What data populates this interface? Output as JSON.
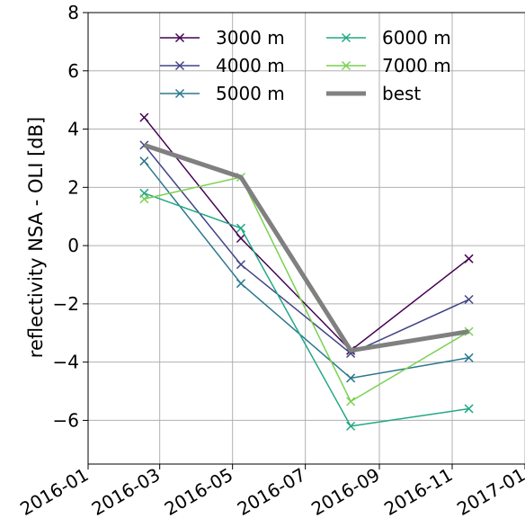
{
  "chart_data": {
    "type": "line",
    "title": "",
    "xlabel": "",
    "ylabel": "reflectivity NSA - OLI [dB]",
    "xlim": [
      "2016-01-01",
      "2017-01-01"
    ],
    "ylim": [
      -7.5,
      8
    ],
    "grid": true,
    "legend_placement": "top-center",
    "x_ticks": [
      "2016-01",
      "2016-03",
      "2016-05",
      "2016-07",
      "2016-09",
      "2016-11",
      "2017-01"
    ],
    "y_ticks": [
      8,
      6,
      4,
      2,
      0,
      -2,
      -4,
      -6
    ],
    "y_tick_labels": [
      "8",
      "6",
      "4",
      "2",
      "0",
      "−2",
      "−4",
      "−6"
    ],
    "x": [
      "2016-02-17",
      "2016-05-08",
      "2016-08-08",
      "2016-11-15"
    ],
    "series": [
      {
        "name": "3000 m",
        "color": "#440154",
        "marker": "x",
        "values": [
          4.4,
          0.25,
          -3.6,
          -0.45
        ]
      },
      {
        "name": "4000 m",
        "color": "#414487",
        "marker": "x",
        "values": [
          3.45,
          -0.65,
          -3.7,
          -1.85
        ]
      },
      {
        "name": "5000 m",
        "color": "#2a788e",
        "marker": "x",
        "values": [
          2.9,
          -1.3,
          -4.55,
          -3.85
        ]
      },
      {
        "name": "6000 m",
        "color": "#22a884",
        "marker": "x",
        "values": [
          1.8,
          0.6,
          -6.2,
          -5.6
        ]
      },
      {
        "name": "7000 m",
        "color": "#7ad151",
        "marker": "x",
        "values": [
          1.6,
          2.35,
          -5.35,
          -2.95
        ]
      },
      {
        "name": "best",
        "color": "#808080",
        "marker": "none",
        "values": [
          3.45,
          2.35,
          -3.6,
          -2.95
        ]
      }
    ]
  }
}
